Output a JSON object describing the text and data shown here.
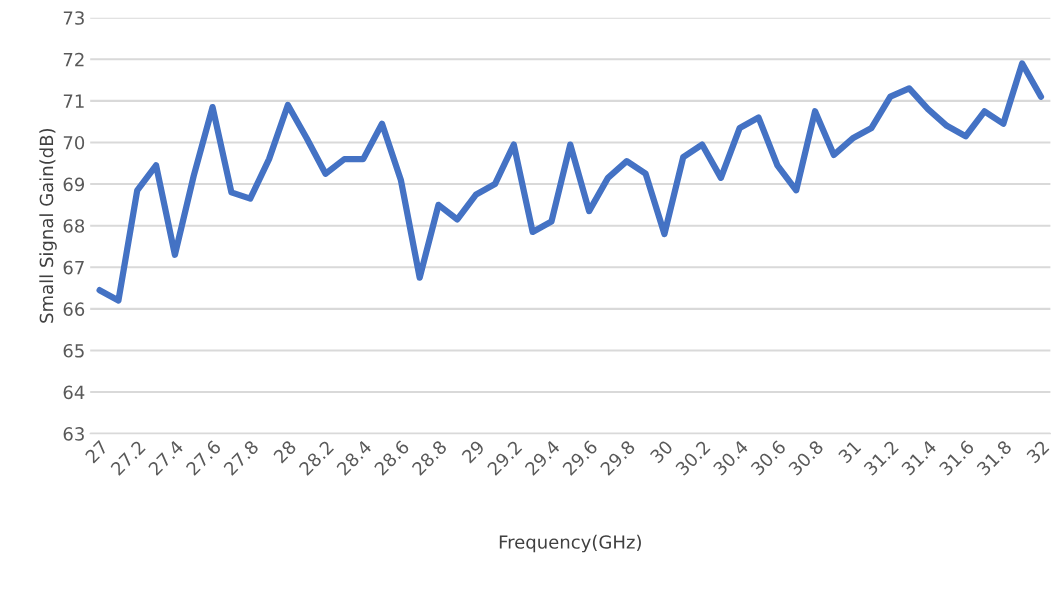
{
  "chart_data": {
    "type": "line",
    "xlabel": "Frequency(GHz)",
    "ylabel": "Small Signal Gain(dB)",
    "x": [
      27.0,
      27.1,
      27.2,
      27.3,
      27.4,
      27.5,
      27.6,
      27.7,
      27.8,
      27.9,
      28.0,
      28.1,
      28.2,
      28.3,
      28.4,
      28.5,
      28.6,
      28.7,
      28.8,
      28.9,
      29.0,
      29.1,
      29.2,
      29.3,
      29.4,
      29.5,
      29.6,
      29.7,
      29.8,
      29.9,
      30.0,
      30.1,
      30.2,
      30.3,
      30.4,
      30.5,
      30.6,
      30.7,
      30.8,
      30.9,
      31.0,
      31.1,
      31.2,
      31.3,
      31.4,
      31.5,
      31.6,
      31.7,
      31.8,
      31.9,
      32.0
    ],
    "series": [
      {
        "color": "#4472c4",
        "values": [
          66.45,
          66.2,
          68.85,
          69.45,
          67.3,
          69.2,
          70.85,
          68.8,
          68.65,
          69.6,
          70.9,
          70.1,
          69.25,
          69.6,
          69.6,
          70.45,
          69.1,
          66.75,
          68.5,
          68.15,
          68.75,
          69.0,
          69.95,
          67.85,
          68.1,
          69.95,
          68.35,
          69.15,
          69.55,
          69.25,
          67.8,
          69.65,
          69.95,
          69.15,
          70.35,
          70.6,
          69.45,
          68.85,
          70.75,
          69.7,
          70.1,
          70.35,
          71.1,
          71.3,
          70.8,
          70.4,
          70.15,
          70.75,
          70.45,
          71.9,
          71.1
        ]
      }
    ],
    "xlim": [
      26.95,
      32.05
    ],
    "xticks": [
      27,
      27.2,
      27.4,
      27.6,
      27.8,
      28,
      28.2,
      28.4,
      28.6,
      28.8,
      29,
      29.2,
      29.4,
      29.6,
      29.8,
      30,
      30.2,
      30.4,
      30.6,
      30.8,
      31,
      31.2,
      31.4,
      31.6,
      31.8,
      32
    ],
    "ylim": [
      63,
      73
    ],
    "yticks": [
      63,
      64,
      65,
      66,
      67,
      68,
      69,
      70,
      71,
      72,
      73
    ],
    "grid": "y",
    "marker": "none",
    "line_style": "solid"
  }
}
